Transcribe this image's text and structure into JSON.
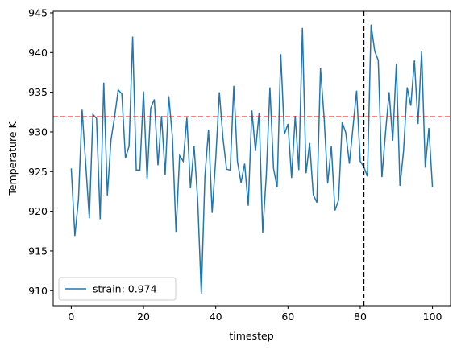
{
  "chart_data": {
    "type": "line",
    "x_label": "timestep",
    "y_label": "Temperature K",
    "x": [
      0,
      1,
      2,
      3,
      4,
      5,
      6,
      7,
      8,
      9,
      10,
      11,
      12,
      13,
      14,
      15,
      16,
      17,
      18,
      19,
      20,
      21,
      22,
      23,
      24,
      25,
      26,
      27,
      28,
      29,
      30,
      31,
      32,
      33,
      34,
      35,
      36,
      37,
      38,
      39,
      40,
      41,
      42,
      43,
      44,
      45,
      46,
      47,
      48,
      49,
      50,
      51,
      52,
      53,
      54,
      55,
      56,
      57,
      58,
      59,
      60,
      61,
      62,
      63,
      64,
      65,
      66,
      67,
      68,
      69,
      70,
      71,
      72,
      73,
      74,
      75,
      76,
      77,
      78,
      79,
      80,
      81,
      82,
      83,
      84,
      85,
      86,
      87,
      88,
      89,
      90,
      91,
      92,
      93,
      94,
      95,
      96,
      97,
      98,
      99,
      100
    ],
    "series": [
      {
        "name": "strain: 0.974",
        "color": "#1f77b4",
        "values": [
          925.4,
          916.9,
          921.5,
          932.8,
          926,
          919.1,
          932.2,
          931.7,
          919,
          936.2,
          922,
          929,
          931.9,
          935.3,
          934.8,
          926.7,
          928.2,
          942,
          925.2,
          925.2,
          935.1,
          924,
          933,
          934.1,
          925.8,
          932,
          924.6,
          934.5,
          929.4,
          917.4,
          927,
          926.3,
          931.8,
          922.9,
          928.2,
          921.4,
          909.6,
          924.4,
          930.3,
          919.8,
          926.6,
          935,
          929.2,
          925.3,
          925.2,
          935.8,
          926.3,
          923.6,
          926,
          920.7,
          932.7,
          927.6,
          932.4,
          917.3,
          924.6,
          935.6,
          925.4,
          923,
          939.8,
          929.7,
          931,
          924.2,
          932,
          925.2,
          943.1,
          924.8,
          928.6,
          922.1,
          921.1,
          938,
          931.8,
          923.5,
          928.2,
          920.1,
          921.4,
          931.2,
          929.9,
          926,
          930.6,
          935.2,
          926.3,
          925.6,
          924.4,
          943.5,
          940.2,
          939,
          924.3,
          929.9,
          935,
          928.9,
          938.6,
          923.2,
          927.6,
          935.6,
          933.3,
          939,
          931,
          940.2,
          925.5,
          930.5,
          923
        ]
      }
    ],
    "hline": {
      "y": 931.9,
      "color": "#ff0000"
    },
    "vline": {
      "x": 81,
      "color": "#000000"
    },
    "xlim": [
      -5,
      105
    ],
    "ylim": [
      908.1,
      945.2
    ],
    "xticks": [
      0,
      20,
      40,
      60,
      80,
      100
    ],
    "yticks": [
      910,
      915,
      920,
      925,
      930,
      935,
      940,
      945
    ],
    "legend": "lower left"
  }
}
